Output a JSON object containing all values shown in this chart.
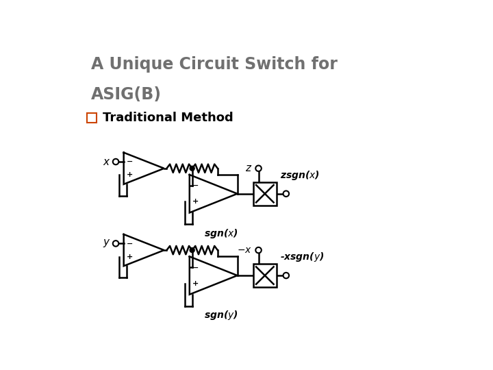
{
  "title_line1": "A Unique Circuit Switch for",
  "title_line2": "ASIG(B)",
  "title_color": "#707070",
  "subtitle_box_color": "#cc4400",
  "background_color": "#ffffff",
  "border_color": "#cccccc",
  "circuit_color": "#000000",
  "fig_width": 7.2,
  "fig_height": 5.4
}
